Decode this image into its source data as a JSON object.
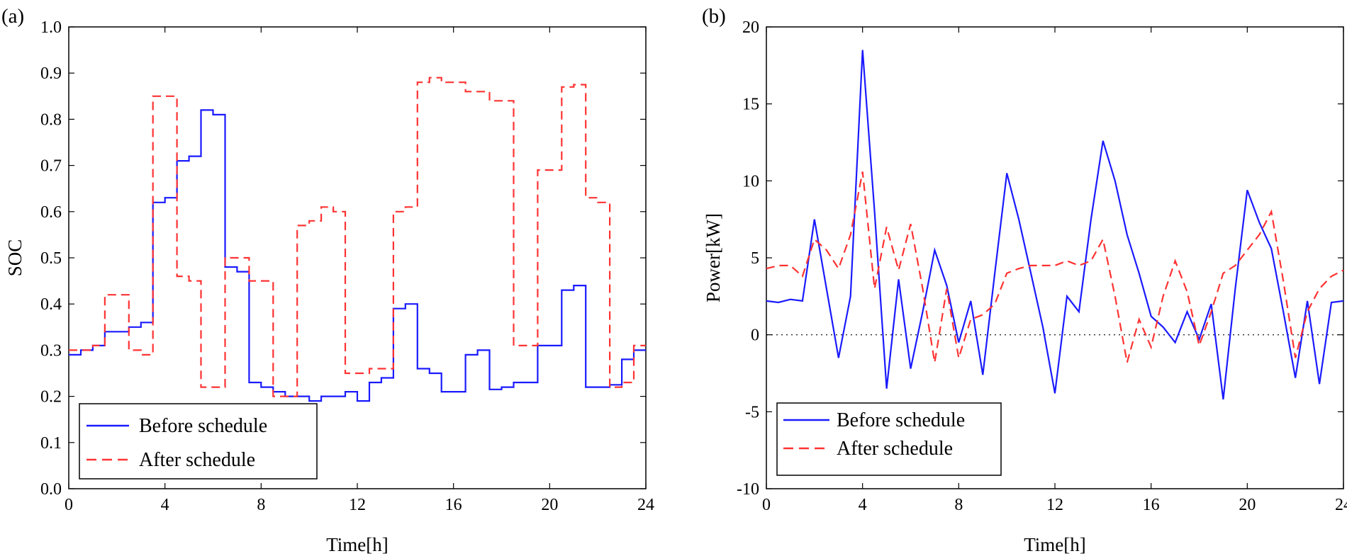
{
  "colors": {
    "before": "#1a1aff",
    "after": "#ff3333"
  },
  "chart_data": [
    {
      "type": "line",
      "panel_label": "(a)",
      "title": "",
      "xlabel": "Time[h]",
      "ylabel": "SOC",
      "xlim": [
        0,
        24
      ],
      "ylim": [
        0.0,
        1.0
      ],
      "x_ticks": [
        0,
        4,
        8,
        12,
        16,
        20,
        24
      ],
      "x_tick_labels": [
        "0",
        "4",
        "8",
        "12",
        "16",
        "20",
        "24"
      ],
      "y_ticks": [
        0.0,
        0.1,
        0.2,
        0.3,
        0.4,
        0.5,
        0.6,
        0.7,
        0.8,
        0.9,
        1.0
      ],
      "y_tick_labels": [
        "0.0",
        "0.1",
        "0.2",
        "0.3",
        "0.4",
        "0.5",
        "0.6",
        "0.7",
        "0.8",
        "0.9",
        "1.0"
      ],
      "step": true,
      "legend": {
        "placement": "bottom-left",
        "entries": [
          "Before schedule",
          "After schedule"
        ]
      },
      "series": [
        {
          "name": "Before schedule",
          "style": "solid",
          "color_key": "before",
          "x": [
            0,
            0.5,
            1,
            1.5,
            2,
            2.5,
            3,
            3.5,
            4,
            4.5,
            5,
            5.5,
            6,
            6.5,
            7,
            7.5,
            8,
            8.5,
            9,
            9.5,
            10,
            10.5,
            11,
            11.5,
            12,
            12.5,
            13,
            13.5,
            14,
            14.5,
            15,
            15.5,
            16,
            16.5,
            17,
            17.5,
            18,
            18.5,
            19,
            19.5,
            20,
            20.5,
            21,
            21.5,
            22,
            22.5,
            23,
            23.5,
            24
          ],
          "y": [
            0.29,
            0.3,
            0.31,
            0.34,
            0.34,
            0.35,
            0.36,
            0.62,
            0.63,
            0.71,
            0.72,
            0.82,
            0.81,
            0.48,
            0.47,
            0.23,
            0.22,
            0.21,
            0.2,
            0.2,
            0.19,
            0.2,
            0.2,
            0.21,
            0.19,
            0.23,
            0.24,
            0.39,
            0.4,
            0.26,
            0.25,
            0.21,
            0.21,
            0.29,
            0.3,
            0.215,
            0.22,
            0.23,
            0.23,
            0.31,
            0.31,
            0.43,
            0.44,
            0.22,
            0.22,
            0.225,
            0.28,
            0.3,
            0.3
          ]
        },
        {
          "name": "After schedule",
          "style": "dashed",
          "color_key": "after",
          "x": [
            0,
            0.5,
            1,
            1.5,
            2,
            2.5,
            3,
            3.5,
            4,
            4.5,
            5,
            5.5,
            6,
            6.5,
            7,
            7.5,
            8,
            8.5,
            9,
            9.5,
            10,
            10.5,
            11,
            11.5,
            12,
            12.5,
            13,
            13.5,
            14,
            14.5,
            15,
            15.5,
            16,
            16.5,
            17,
            17.5,
            18,
            18.5,
            19,
            19.5,
            20,
            20.5,
            21,
            21.5,
            22,
            22.5,
            23,
            23.5,
            24
          ],
          "y": [
            0.3,
            0.3,
            0.31,
            0.42,
            0.42,
            0.3,
            0.29,
            0.85,
            0.85,
            0.46,
            0.45,
            0.22,
            0.22,
            0.5,
            0.5,
            0.45,
            0.45,
            0.2,
            0.2,
            0.57,
            0.58,
            0.61,
            0.6,
            0.25,
            0.25,
            0.26,
            0.26,
            0.6,
            0.61,
            0.88,
            0.89,
            0.88,
            0.88,
            0.86,
            0.86,
            0.84,
            0.84,
            0.31,
            0.31,
            0.69,
            0.69,
            0.87,
            0.875,
            0.63,
            0.62,
            0.22,
            0.23,
            0.31,
            0.31
          ]
        }
      ]
    },
    {
      "type": "line",
      "panel_label": "(b)",
      "title": "",
      "xlabel": "Time[h]",
      "ylabel": "Power[kW]",
      "xlim": [
        0,
        24
      ],
      "ylim": [
        -10,
        20
      ],
      "x_ticks": [
        0,
        4,
        8,
        12,
        16,
        20,
        24
      ],
      "x_tick_labels": [
        "0",
        "4",
        "8",
        "12",
        "16",
        "20",
        "24"
      ],
      "y_ticks": [
        -10,
        -5,
        0,
        5,
        10,
        15,
        20
      ],
      "y_tick_labels": [
        "-10",
        "-5",
        "0",
        "5",
        "10",
        "15",
        "20"
      ],
      "zero_reference_line": 0,
      "legend": {
        "placement": "bottom-left",
        "entries": [
          "Before schedule",
          "After schedule"
        ]
      },
      "series": [
        {
          "name": "Before schedule",
          "style": "solid",
          "color_key": "before",
          "x": [
            0,
            0.5,
            1,
            1.5,
            2,
            2.5,
            3,
            3.5,
            4,
            4.5,
            5,
            5.5,
            6,
            6.5,
            7,
            7.5,
            8,
            8.5,
            9,
            9.5,
            10,
            10.5,
            11,
            11.5,
            12,
            12.5,
            13,
            13.5,
            14,
            14.5,
            15,
            15.5,
            16,
            16.5,
            17,
            17.5,
            18,
            18.5,
            19,
            19.5,
            20,
            20.5,
            21,
            21.5,
            22,
            22.5,
            23,
            23.5,
            24
          ],
          "y": [
            2.2,
            2.1,
            2.3,
            2.2,
            7.5,
            3.0,
            -1.5,
            2.5,
            18.5,
            8.0,
            -3.5,
            3.6,
            -2.2,
            1.5,
            5.5,
            3.2,
            -0.5,
            2.2,
            -2.6,
            4.0,
            10.5,
            7.5,
            4.0,
            0.5,
            -3.8,
            2.5,
            1.5,
            7.5,
            12.6,
            10.0,
            6.5,
            4.0,
            1.2,
            0.5,
            -0.5,
            1.5,
            -0.3,
            2.0,
            -4.2,
            3.0,
            9.4,
            7.3,
            5.6,
            1.5,
            -2.8,
            2.2,
            -3.2,
            2.1,
            2.2
          ]
        },
        {
          "name": "After schedule",
          "style": "dashed",
          "color_key": "after",
          "x": [
            0,
            0.5,
            1,
            1.5,
            2,
            2.5,
            3,
            3.5,
            4,
            4.5,
            5,
            5.5,
            6,
            6.5,
            7,
            7.5,
            8,
            8.5,
            9,
            9.5,
            10,
            10.5,
            11,
            11.5,
            12,
            12.5,
            13,
            13.5,
            14,
            14.5,
            15,
            15.5,
            16,
            16.5,
            17,
            17.5,
            18,
            18.5,
            19,
            19.5,
            20,
            20.5,
            21,
            21.5,
            22,
            22.5,
            23,
            23.5,
            24
          ],
          "y": [
            4.3,
            4.5,
            4.5,
            3.8,
            6.2,
            5.5,
            4.3,
            6.5,
            10.6,
            3.0,
            7.0,
            4.2,
            7.2,
            3.0,
            -1.8,
            3.0,
            -1.5,
            1.0,
            1.3,
            2.0,
            4.0,
            4.3,
            4.5,
            4.5,
            4.5,
            4.8,
            4.5,
            4.8,
            6.2,
            2.5,
            -1.8,
            1.0,
            -0.8,
            2.5,
            4.8,
            2.8,
            -0.7,
            1.5,
            4.0,
            4.5,
            5.5,
            6.5,
            8.0,
            3.5,
            -1.5,
            1.5,
            3.0,
            3.8,
            4.2
          ]
        }
      ]
    }
  ]
}
